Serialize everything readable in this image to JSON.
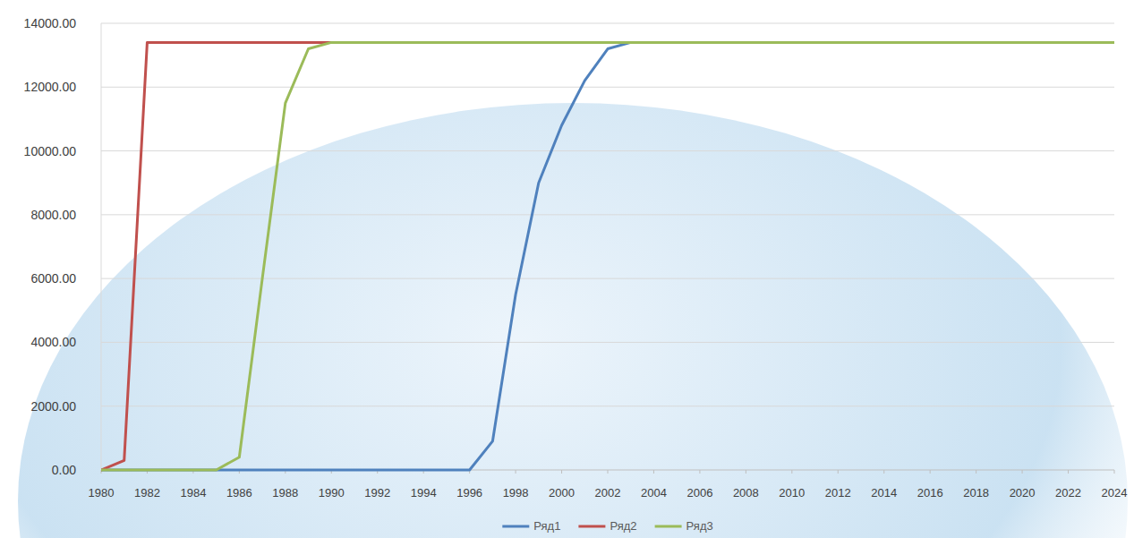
{
  "chart_data": {
    "type": "line",
    "x": [
      1980,
      1981,
      1982,
      1983,
      1984,
      1985,
      1986,
      1987,
      1988,
      1989,
      1990,
      1991,
      1992,
      1993,
      1994,
      1995,
      1996,
      1997,
      1998,
      1999,
      2000,
      2001,
      2002,
      2003,
      2004,
      2005,
      2006,
      2007,
      2008,
      2009,
      2010,
      2011,
      2012,
      2013,
      2014,
      2015,
      2016,
      2017,
      2018,
      2019,
      2020,
      2021,
      2022,
      2023,
      2024
    ],
    "series": [
      {
        "name": "Ряд1",
        "color": "#4f81bd",
        "values": [
          0,
          0,
          0,
          0,
          0,
          0,
          0,
          0,
          0,
          0,
          0,
          0,
          0,
          0,
          0,
          0,
          0,
          900,
          5500,
          9000,
          10800,
          12200,
          13200,
          13400,
          13400,
          13400,
          13400,
          13400,
          13400,
          13400,
          13400,
          13400,
          13400,
          13400,
          13400,
          13400,
          13400,
          13400,
          13400,
          13400,
          13400,
          13400,
          13400,
          13400,
          13400
        ]
      },
      {
        "name": "Ряд2",
        "color": "#c0504d",
        "values": [
          0,
          300,
          13400,
          13400,
          13400,
          13400,
          13400,
          13400,
          13400,
          13400,
          13400,
          13400,
          13400,
          13400,
          13400,
          13400,
          13400,
          13400,
          13400,
          13400,
          13400,
          13400,
          13400,
          13400,
          13400,
          13400,
          13400,
          13400,
          13400,
          13400,
          13400,
          13400,
          13400,
          13400,
          13400,
          13400,
          13400,
          13400,
          13400,
          13400,
          13400,
          13400,
          13400,
          13400,
          13400
        ]
      },
      {
        "name": "Ряд3",
        "color": "#9bbb59",
        "values": [
          0,
          0,
          0,
          0,
          0,
          0,
          400,
          6000,
          11500,
          13200,
          13400,
          13400,
          13400,
          13400,
          13400,
          13400,
          13400,
          13400,
          13400,
          13400,
          13400,
          13400,
          13400,
          13400,
          13400,
          13400,
          13400,
          13400,
          13400,
          13400,
          13400,
          13400,
          13400,
          13400,
          13400,
          13400,
          13400,
          13400,
          13400,
          13400,
          13400,
          13400,
          13400,
          13400,
          13400
        ]
      }
    ],
    "xlim": [
      1980,
      2024
    ],
    "xticks": [
      1980,
      1982,
      1984,
      1986,
      1988,
      1990,
      1992,
      1994,
      1996,
      1998,
      2000,
      2002,
      2004,
      2006,
      2008,
      2010,
      2012,
      2014,
      2016,
      2018,
      2020,
      2022,
      2024
    ],
    "ylim": [
      0,
      14000
    ],
    "yticks": [
      {
        "value": 0,
        "label": "0.00"
      },
      {
        "value": 2000,
        "label": "2000.00"
      },
      {
        "value": 4000,
        "label": "4000.00"
      },
      {
        "value": 6000,
        "label": "6000.00"
      },
      {
        "value": 8000,
        "label": "8000.00"
      },
      {
        "value": 10000,
        "label": "10000.00"
      },
      {
        "value": 12000,
        "label": "12000.00"
      },
      {
        "value": 14000,
        "label": "14000.00"
      }
    ],
    "grid": true,
    "legend": "bottom"
  }
}
